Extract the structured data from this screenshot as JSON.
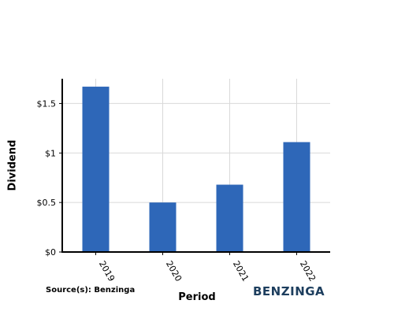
{
  "source_label": "Source(s): Benzinga",
  "brand": "BENZINGA",
  "bar_color": "#2e67b8",
  "chart_data": {
    "type": "bar",
    "categories": [
      "2019",
      "2020",
      "2021",
      "2022"
    ],
    "values": [
      1.67,
      0.5,
      0.68,
      1.11
    ],
    "xlabel": "Period",
    "ylabel": "Dividend",
    "ylim": [
      0,
      1.75
    ],
    "yticks": [
      0,
      0.5,
      1,
      1.5
    ],
    "ytick_labels": [
      "$0",
      "$0.5",
      "$1",
      "$1.5"
    ],
    "grid": true
  }
}
